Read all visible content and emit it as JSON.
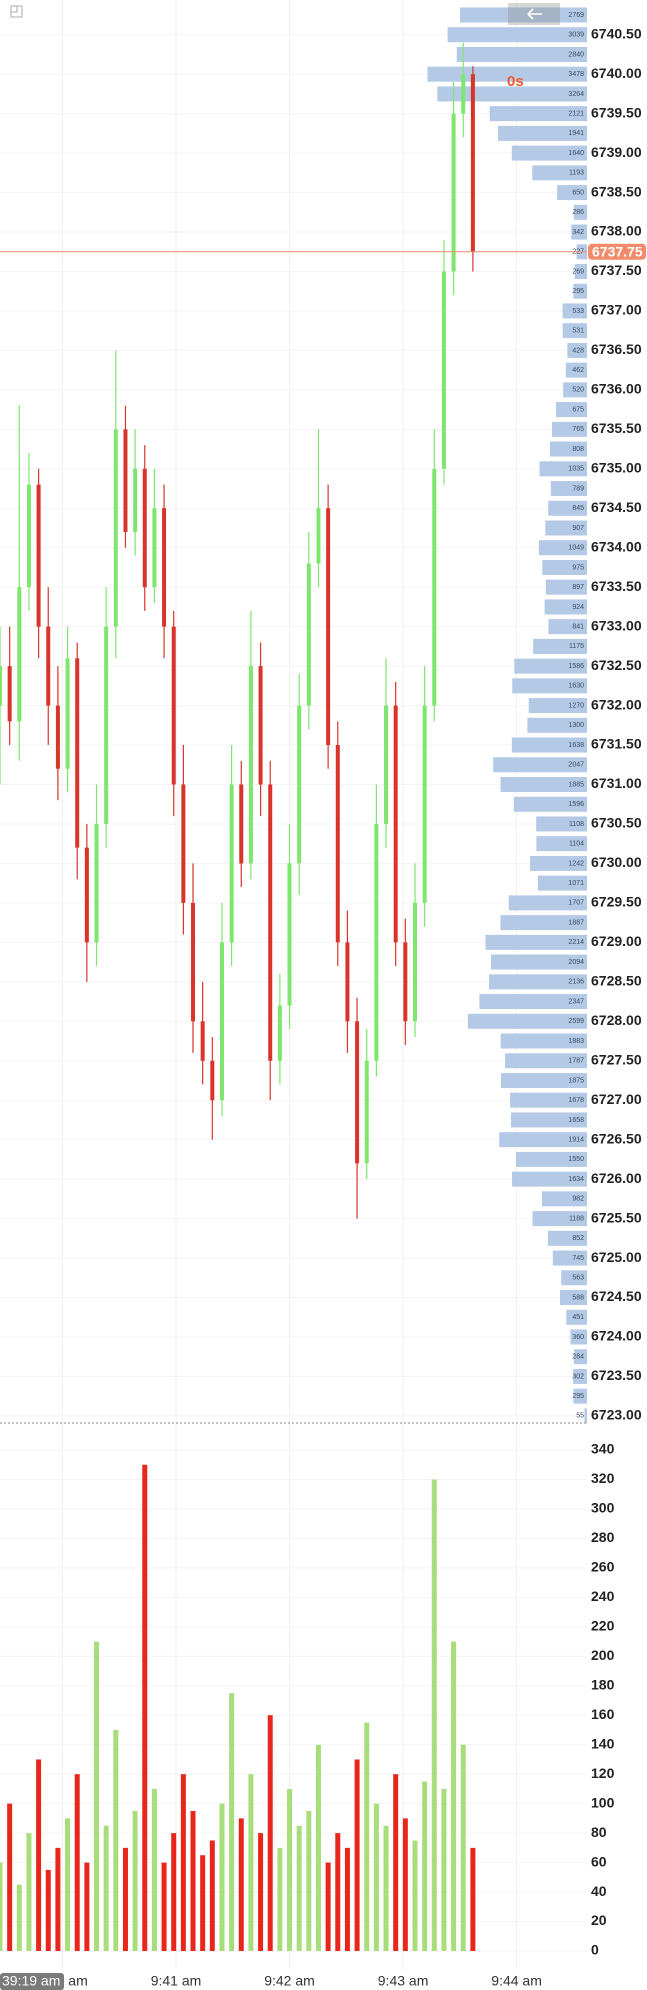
{
  "chart_data": {
    "type": "candlestick",
    "xlim": [
      39.45,
      44.62
    ],
    "xticks": [
      {
        "value": 40,
        "label": "9:40 am"
      },
      {
        "value": 41,
        "label": "9:41 am"
      },
      {
        "value": 42,
        "label": "9:42 am"
      },
      {
        "value": 43,
        "label": "9:43 am"
      },
      {
        "value": 44,
        "label": "9:44 am"
      }
    ],
    "ylim": [
      6722.91,
      6740.94
    ],
    "yticks": [
      {
        "value": 6740.5,
        "label": "6740.50"
      },
      {
        "value": 6740,
        "label": "6740.00"
      },
      {
        "value": 6739.5,
        "label": "6739.50"
      },
      {
        "value": 6739,
        "label": "6739.00"
      },
      {
        "value": 6738.5,
        "label": "6738.50"
      },
      {
        "value": 6738,
        "label": "6738.00"
      },
      {
        "value": 6737.5,
        "label": "6737.50"
      },
      {
        "value": 6737,
        "label": "6737.00"
      },
      {
        "value": 6736.5,
        "label": "6736.50"
      },
      {
        "value": 6736,
        "label": "6736.00"
      },
      {
        "value": 6735.5,
        "label": "6735.50"
      },
      {
        "value": 6735,
        "label": "6735.00"
      },
      {
        "value": 6734.5,
        "label": "6734.50"
      },
      {
        "value": 6734,
        "label": "6734.00"
      },
      {
        "value": 6733.5,
        "label": "6733.50"
      },
      {
        "value": 6733,
        "label": "6733.00"
      },
      {
        "value": 6732.5,
        "label": "6732.50"
      },
      {
        "value": 6732,
        "label": "6732.00"
      },
      {
        "value": 6731.5,
        "label": "6731.50"
      },
      {
        "value": 6731,
        "label": "6731.00"
      },
      {
        "value": 6730.5,
        "label": "6730.50"
      },
      {
        "value": 6730,
        "label": "6730.00"
      },
      {
        "value": 6729.5,
        "label": "6729.50"
      },
      {
        "value": 6729,
        "label": "6729.00"
      },
      {
        "value": 6728.5,
        "label": "6728.50"
      },
      {
        "value": 6728,
        "label": "6728.00"
      },
      {
        "value": 6727.5,
        "label": "6727.50"
      },
      {
        "value": 6727,
        "label": "6727.00"
      },
      {
        "value": 6726.5,
        "label": "6726.50"
      },
      {
        "value": 6726,
        "label": "6726.00"
      },
      {
        "value": 6725.5,
        "label": "6725.50"
      },
      {
        "value": 6725,
        "label": "6725.00"
      },
      {
        "value": 6724.5,
        "label": "6724.50"
      },
      {
        "value": 6724,
        "label": "6724.00"
      },
      {
        "value": 6723.5,
        "label": "6723.50"
      },
      {
        "value": 6723,
        "label": "6723.00"
      }
    ],
    "up_color": "#7ee66f",
    "down_color": "#d9342b",
    "volume_up_color": "#a8dd7c",
    "volume_down_color": "#e8261c",
    "x": [
      39.45,
      39.535,
      39.62,
      39.705,
      39.79,
      39.875,
      39.96,
      40.045,
      40.13,
      40.215,
      40.3,
      40.385,
      40.47,
      40.555,
      40.64,
      40.725,
      40.81,
      40.895,
      40.98,
      41.065,
      41.15,
      41.235,
      41.32,
      41.405,
      41.49,
      41.575,
      41.66,
      41.745,
      41.83,
      41.915,
      42.0,
      42.085,
      42.17,
      42.255,
      42.34,
      42.425,
      42.51,
      42.595,
      42.68,
      42.765,
      42.85,
      42.935,
      43.02,
      43.105,
      43.19,
      43.275,
      43.36,
      43.445,
      43.53,
      43.615
    ],
    "open": [
      6732.0,
      6732.5,
      6731.8,
      6733.5,
      6734.8,
      6733.0,
      6732.0,
      6731.2,
      6732.6,
      6730.2,
      6729.0,
      6730.5,
      6733.0,
      6735.5,
      6734.2,
      6735.0,
      6733.5,
      6734.5,
      6733.0,
      6731.0,
      6729.5,
      6728.0,
      6727.5,
      6727.0,
      6729.0,
      6731.0,
      6730.0,
      6732.5,
      6731.0,
      6727.5,
      6728.2,
      6730.0,
      6732.0,
      6733.8,
      6734.5,
      6731.5,
      6729.0,
      6728.0,
      6726.2,
      6727.5,
      6730.5,
      6732.0,
      6729.0,
      6728.0,
      6729.5,
      6732.0,
      6735.0,
      6737.5,
      6739.5,
      6740.0
    ],
    "high": [
      6733.0,
      6733.0,
      6735.8,
      6735.2,
      6735.0,
      6733.5,
      6732.5,
      6733.0,
      6732.8,
      6730.5,
      6731.0,
      6733.5,
      6736.5,
      6735.8,
      6735.5,
      6735.3,
      6735.0,
      6734.8,
      6733.2,
      6731.5,
      6730.0,
      6728.5,
      6727.8,
      6729.5,
      6731.5,
      6731.3,
      6733.2,
      6732.8,
      6731.3,
      6728.6,
      6730.5,
      6732.4,
      6734.2,
      6735.5,
      6734.8,
      6731.8,
      6729.4,
      6728.3,
      6727.9,
      6731.0,
      6732.6,
      6732.3,
      6729.3,
      6730.0,
      6732.5,
      6735.5,
      6737.9,
      6739.9,
      6740.4,
      6740.1
    ],
    "low": [
      6731.0,
      6731.5,
      6731.3,
      6733.2,
      6732.6,
      6731.5,
      6730.8,
      6730.9,
      6729.8,
      6728.5,
      6728.7,
      6730.2,
      6732.6,
      6734.0,
      6733.9,
      6733.2,
      6733.3,
      6732.6,
      6730.6,
      6729.1,
      6727.6,
      6727.2,
      6726.5,
      6726.8,
      6728.7,
      6729.7,
      6729.8,
      6730.6,
      6727.0,
      6727.2,
      6727.9,
      6729.6,
      6731.7,
      6733.5,
      6731.2,
      6728.7,
      6727.6,
      6725.5,
      6726.0,
      6727.3,
      6730.2,
      6728.7,
      6727.7,
      6727.8,
      6729.2,
      6731.8,
      6734.8,
      6737.2,
      6739.2,
      6737.5
    ],
    "close": [
      6732.5,
      6731.8,
      6733.5,
      6734.8,
      6733.0,
      6732.0,
      6731.2,
      6732.6,
      6730.2,
      6729.0,
      6730.5,
      6733.0,
      6735.5,
      6734.2,
      6735.0,
      6733.5,
      6734.5,
      6733.0,
      6731.0,
      6729.5,
      6728.0,
      6727.5,
      6727.0,
      6729.0,
      6731.0,
      6730.0,
      6732.5,
      6731.0,
      6727.5,
      6728.2,
      6730.0,
      6732.0,
      6733.8,
      6734.5,
      6731.5,
      6729.0,
      6728.0,
      6726.2,
      6727.5,
      6730.5,
      6732.0,
      6729.0,
      6728.0,
      6729.5,
      6732.0,
      6735.0,
      6737.5,
      6739.5,
      6740.0,
      6737.75
    ],
    "volume": [
      60,
      100,
      45,
      80,
      130,
      55,
      70,
      90,
      120,
      60,
      210,
      85,
      150,
      70,
      95,
      330,
      110,
      60,
      80,
      120,
      95,
      65,
      75,
      100,
      175,
      90,
      120,
      80,
      160,
      70,
      110,
      85,
      95,
      140,
      60,
      80,
      70,
      130,
      155,
      100,
      85,
      120,
      90,
      75,
      115,
      320,
      110,
      210,
      140,
      70
    ],
    "volume_ylim": [
      -12.9,
      356.3
    ],
    "volume_yticks": [
      0,
      20,
      40,
      60,
      80,
      100,
      120,
      140,
      160,
      180,
      200,
      220,
      240,
      260,
      280,
      300,
      320,
      340
    ],
    "last_price": {
      "value": 6737.75,
      "label": "6737.75"
    },
    "last_price_color": "#f28b6b",
    "countdown": "0s",
    "crosshair_time": "39:19 am",
    "volume_profile": {
      "color": "#b3c9e6",
      "xlim": [
        0,
        12800
      ],
      "prices": [
        6740.75,
        6740.5,
        6740.25,
        6740,
        6739.75,
        6739.5,
        6739.25,
        6739,
        6738.75,
        6738.5,
        6738.25,
        6738,
        6737.75,
        6737.5,
        6737.25,
        6737,
        6736.75,
        6736.5,
        6736.25,
        6736,
        6735.75,
        6735.5,
        6735.25,
        6735,
        6734.75,
        6734.5,
        6734.25,
        6734,
        6733.75,
        6733.5,
        6733.25,
        6733,
        6732.75,
        6732.5,
        6732.25,
        6732,
        6731.75,
        6731.5,
        6731.25,
        6731,
        6730.75,
        6730.5,
        6730.25,
        6730,
        6729.75,
        6729.5,
        6729.25,
        6729,
        6728.75,
        6728.5,
        6728.25,
        6728,
        6727.75,
        6727.5,
        6727.25,
        6727,
        6726.75,
        6726.5,
        6726.25,
        6726,
        6725.75,
        6725.5,
        6725.25,
        6725,
        6724.75,
        6724.5,
        6724.25,
        6724,
        6723.75,
        6723.5,
        6723.25,
        6723
      ],
      "values": [
        2769,
        3039,
        2840,
        3478,
        3264,
        2121,
        1941,
        1640,
        1193,
        650,
        286,
        342,
        227,
        269,
        295,
        533,
        531,
        428,
        462,
        520,
        675,
        765,
        808,
        1035,
        789,
        845,
        907,
        1049,
        975,
        897,
        924,
        841,
        1175,
        1586,
        1630,
        1270,
        1300,
        1638,
        2047,
        1885,
        1596,
        1108,
        1104,
        1242,
        1071,
        1707,
        1887,
        2214,
        2094,
        2136,
        2347,
        2599,
        1883,
        1787,
        1875,
        1678,
        1658,
        1914,
        1550,
        1634,
        982,
        1188,
        852,
        745,
        563,
        588,
        451,
        360,
        284,
        302,
        295,
        55
      ]
    }
  }
}
